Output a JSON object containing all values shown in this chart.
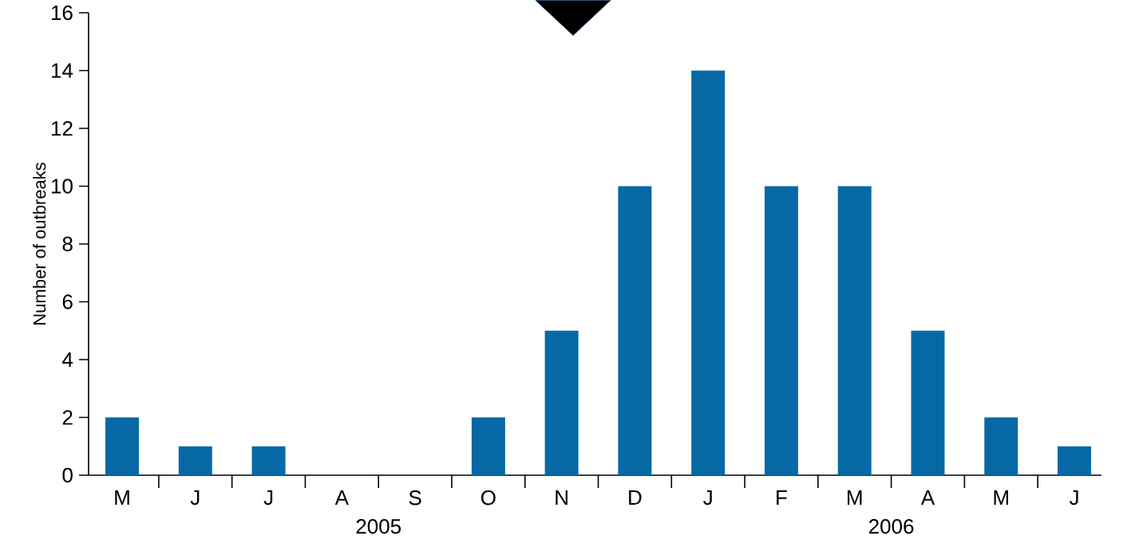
{
  "chart_data": {
    "type": "bar",
    "ylabel": "Number of outbreaks",
    "categories": [
      "M",
      "J",
      "J",
      "A",
      "S",
      "O",
      "N",
      "D",
      "J",
      "F",
      "M",
      "A",
      "M",
      "J"
    ],
    "values": [
      2,
      1,
      1,
      0,
      0,
      2,
      5,
      10,
      14,
      10,
      10,
      5,
      2,
      1
    ],
    "color": "#0669a5",
    "ylim": [
      0,
      16
    ],
    "yticks": [
      0,
      2,
      4,
      6,
      8,
      10,
      12,
      14,
      16
    ],
    "annotations": [
      "2005",
      "2006"
    ]
  }
}
